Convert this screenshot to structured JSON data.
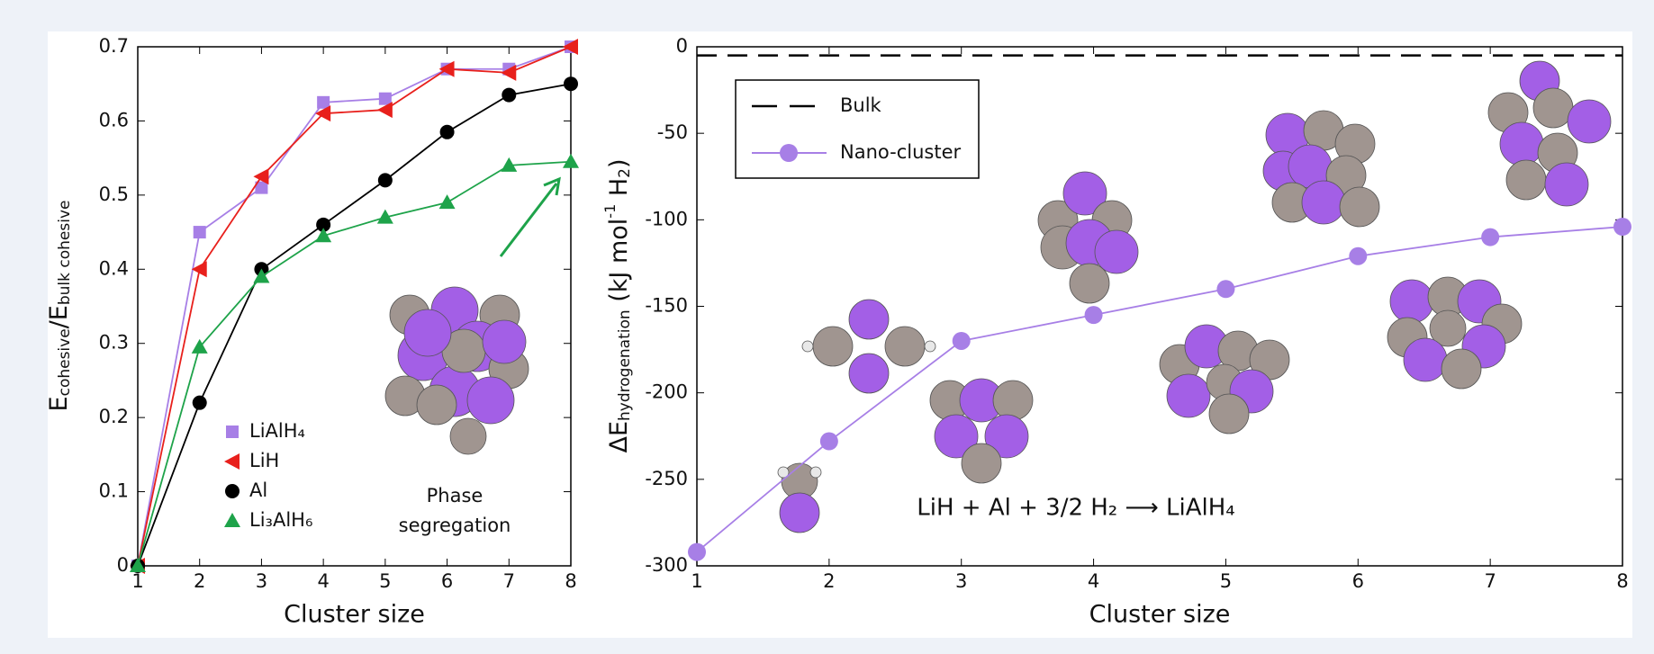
{
  "chart_data": [
    {
      "type": "line",
      "x_label": "Cluster size",
      "y_label": [
        "E",
        "cohesive",
        "/E",
        "bulk cohesive"
      ],
      "x": [
        1,
        2,
        3,
        4,
        5,
        6,
        7,
        8
      ],
      "xlim": [
        1,
        8
      ],
      "xticks": [
        1,
        2,
        3,
        4,
        5,
        6,
        7,
        8
      ],
      "ylim": [
        0,
        0.7
      ],
      "yticks": [
        0,
        0.1,
        0.2,
        0.3,
        0.4,
        0.5,
        0.6,
        0.7
      ],
      "annotation": [
        "Phase",
        "segregation"
      ],
      "series": [
        {
          "name": "LiAlH₄",
          "color": "#a77fe6",
          "marker": "square",
          "values": [
            0,
            0.45,
            0.51,
            0.625,
            0.63,
            0.67,
            0.67,
            0.7
          ]
        },
        {
          "name": "LiH",
          "color": "#e8201c",
          "marker": "triangle-left",
          "values": [
            0,
            0.4,
            0.525,
            0.61,
            0.615,
            0.67,
            0.665,
            0.7
          ]
        },
        {
          "name": "Al",
          "color": "#000000",
          "marker": "circle",
          "values": [
            0,
            0.22,
            0.4,
            0.46,
            0.52,
            0.585,
            0.635,
            0.65
          ]
        },
        {
          "name": "Li₃AlH₆",
          "color": "#1ea34a",
          "marker": "triangle-up",
          "values": [
            0,
            0.295,
            0.39,
            0.445,
            0.47,
            0.49,
            0.54,
            0.545
          ]
        }
      ]
    },
    {
      "type": "line",
      "x_label": "Cluster size",
      "y_label": [
        "ΔE",
        "hydrogenation",
        " (kJ mol",
        "-1",
        " H",
        "2",
        ")"
      ],
      "x": [
        1,
        2,
        3,
        4,
        5,
        6,
        7,
        8
      ],
      "xlim": [
        1,
        8
      ],
      "xticks": [
        1,
        2,
        3,
        4,
        5,
        6,
        7,
        8
      ],
      "ylim": [
        -300,
        0
      ],
      "yticks": [
        -300,
        -250,
        -200,
        -150,
        -100,
        -50,
        0
      ],
      "annotation": "LiH + Al + 3/2 H₂ ⟶ LiAlH₄",
      "series": [
        {
          "name": "Bulk",
          "color": "#000000",
          "marker": "dash",
          "values": [
            -5,
            -5,
            -5,
            -5,
            -5,
            -5,
            -5,
            -5
          ]
        },
        {
          "name": "Nano-cluster",
          "color": "#a77fe6",
          "marker": "circle",
          "values": [
            -292,
            -228,
            -170,
            -155,
            -140,
            -121,
            -110,
            -104
          ]
        }
      ]
    }
  ]
}
